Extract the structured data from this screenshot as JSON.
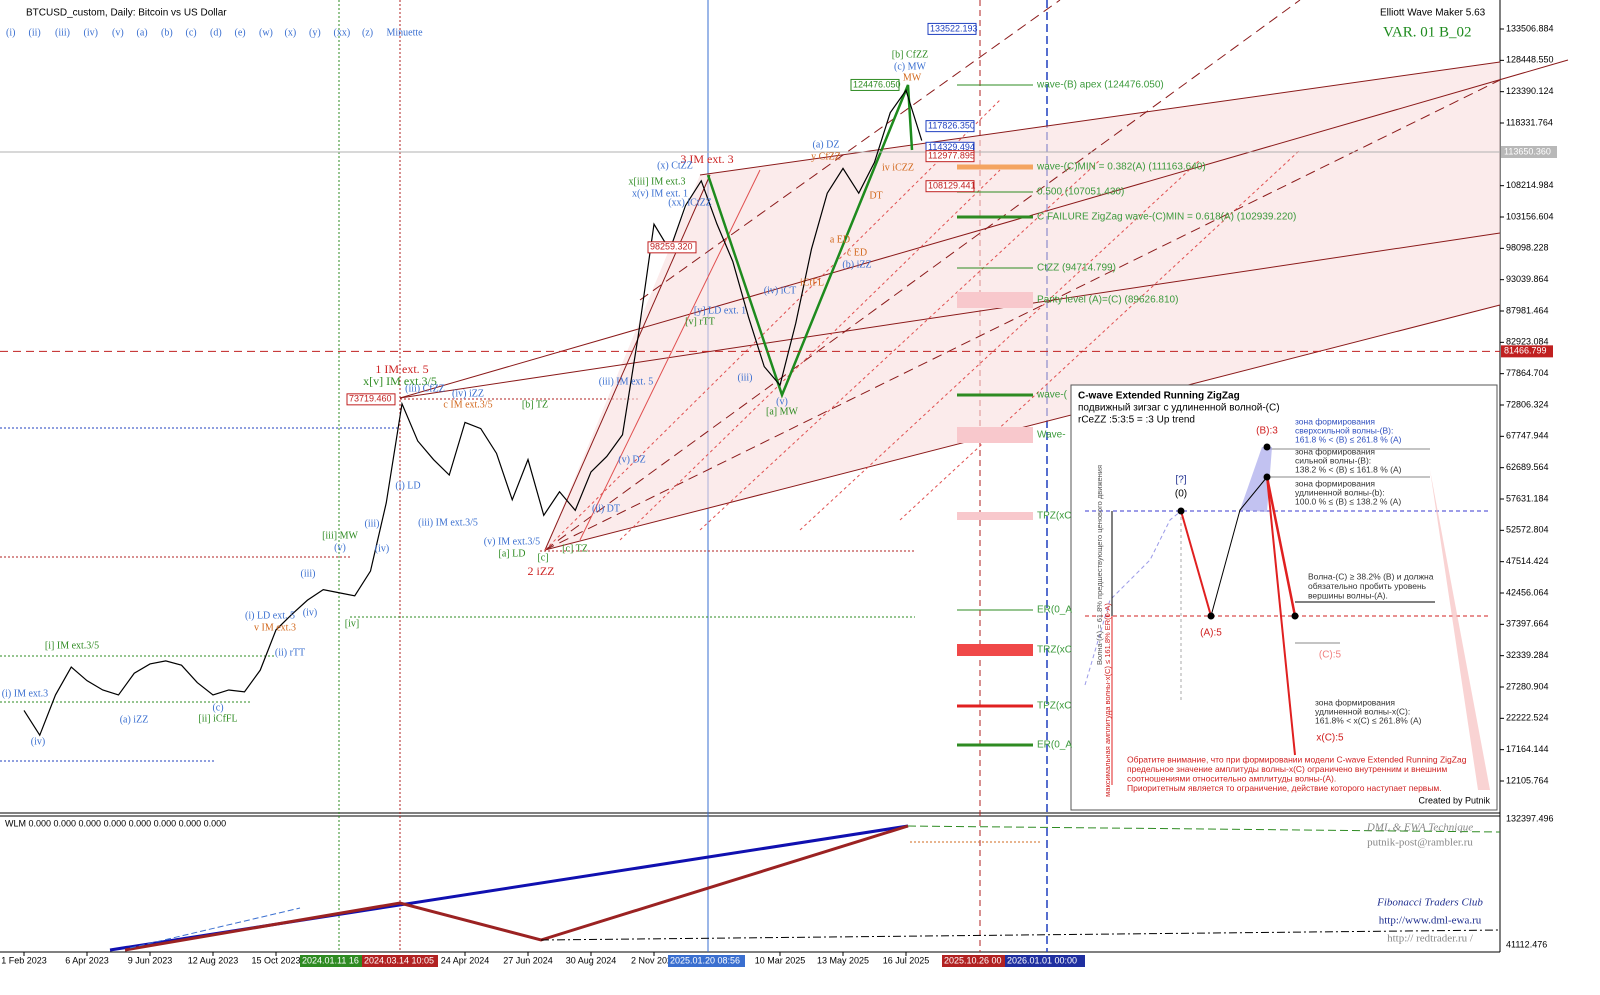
{
  "header": {
    "title": "BTCUSD_custom, Daily: Bitcoin vs US Dollar",
    "wave_buttons": [
      "(i)",
      "(ii)",
      "(iii)",
      "(iv)",
      "(v)",
      "(a)",
      "(b)",
      "(c)",
      "(d)",
      "(e)",
      "(w)",
      "(x)",
      "(y)",
      "(xx)",
      "(z)",
      "Minuette"
    ],
    "tool": "Elliott Wave Maker 5.63",
    "variant": "VAR. 01 B_02"
  },
  "chart_data": {
    "type": "line",
    "color": "#000000",
    "categories": [
      "1 Feb 2023",
      null,
      null,
      null,
      "6 Apr 2023",
      null,
      null,
      null,
      "9 Jun 2023",
      null,
      null,
      null,
      "12 Aug 2023",
      null,
      null,
      null,
      "15 Oct 2023",
      null,
      null,
      null,
      null,
      null,
      null,
      null,
      null,
      null,
      null,
      null,
      "24 Apr 2024",
      null,
      null,
      null,
      "27 Jun 2024",
      null,
      null,
      null,
      "30 Aug 2024",
      null,
      null,
      null,
      "2 Nov 2024",
      null,
      null,
      null,
      null,
      null,
      null,
      null,
      "10 Mar 2025",
      null,
      null,
      null,
      "13 May 2025",
      null,
      null,
      null,
      "16 Jul 2025",
      null
    ],
    "values": [
      23500,
      19500,
      26000,
      30500,
      28300,
      26800,
      26000,
      29500,
      31000,
      31500,
      30800,
      28000,
      26000,
      26800,
      26500,
      30000,
      36500,
      39000,
      41300,
      43000,
      42500,
      42000,
      46000,
      57000,
      73000,
      67000,
      64000,
      61500,
      70000,
      69000,
      65000,
      57500,
      64000,
      55000,
      58800,
      55800,
      62000,
      64500,
      68000,
      84000,
      102000,
      97800,
      105000,
      109000,
      102000,
      96000,
      87000,
      79000,
      76000,
      86000,
      98000,
      107000,
      111000,
      107000,
      112000,
      120000,
      123600,
      115500
    ],
    "ylim": [
      7100,
      138190
    ],
    "yticks": [
      133506.884,
      {
        "value": 128448.55,
        "label": "128448.550"
      },
      123390.124,
      118331.764,
      108214.984,
      103156.604,
      98098.228,
      93039.864,
      87981.464,
      82923.084,
      77864.704,
      72806.324,
      67747.944,
      62689.564,
      57631.184,
      52572.804,
      47514.424,
      42456.064,
      37397.664,
      32339.284,
      27280.904,
      22222.524,
      17164.144,
      12105.764
    ],
    "current_price": {
      "value": 113650.36,
      "label": "113650.360"
    },
    "level_price": 81466.799,
    "price_markers": [
      133522.193,
      {
        "value": 117826.35,
        "label": "117826.350"
      },
      114329.494,
      112977.895,
      108129.441,
      {
        "value": 124476.05,
        "label": "124476.050"
      },
      {
        "value": 98259.32,
        "label": "98259.320"
      },
      {
        "value": 73719.46,
        "label": "73719.460"
      }
    ]
  },
  "time_markers": [
    "2024.01.11 16",
    "2024.03.14 10:05",
    "2025.01.20 08:56",
    "2025.10.26 00",
    "2026.01.01 00:00"
  ],
  "fib_levels": [
    "wave-(B) apex (124476.050)",
    "wave-(C)MIN = 0.382(A) (111163.640)",
    "0.500 (107051.430)",
    "C FAILURE ZigZag wave-(C)MIN = 0.618(A) (102939.220)",
    "CtZZ (94714.799)",
    "Parity level (A)=(C) (89626.810)",
    "wave-(",
    "Wave-",
    "TPZ(xC",
    "ER(0_A",
    "TRZ(xC",
    "TPZ(xC",
    "ER(0_A"
  ],
  "annotations": [
    {
      "text": "1 IM ext. 5",
      "color": "#cc2222"
    },
    {
      "text": "x[v] IM ext.3/5",
      "color": "#2e8b22"
    },
    {
      "text": "2 iZZ",
      "color": "#cc2222"
    },
    {
      "text": "3 IM ext. 3",
      "color": "#cc2222"
    },
    {
      "text": "[a] MW",
      "color": "#2e8b22"
    },
    {
      "text": "[b] CfZZ",
      "color": "#2e8b22"
    },
    {
      "text": "(c) MW",
      "color": "#3a6fd0"
    },
    {
      "text": "MW",
      "color": "#d2691e"
    },
    {
      "text": "(a) DZ",
      "color": "#3a6fd0"
    },
    {
      "text": "y CfZZ",
      "color": "#d2691e"
    },
    {
      "text": "[iii] MW",
      "color": "#2e8b22"
    },
    {
      "text": "(i) LD",
      "color": "#3a6fd0"
    },
    {
      "text": "(iii) IM ext.3/5",
      "color": "#3a6fd0"
    },
    {
      "text": "(v) IM ext.3/5",
      "color": "#3a6fd0"
    },
    {
      "text": "[a] LD",
      "color": "#2e8b22"
    },
    {
      "text": "[b] TZ",
      "color": "#2e8b22"
    },
    {
      "text": "(iv) iZZ",
      "color": "#3a6fd0"
    },
    {
      "text": "(iii) CfZZ",
      "color": "#3a6fd0"
    },
    {
      "text": "c IM ext.3/5",
      "color": "#d2691e"
    },
    {
      "text": "(iii) IM ext. 5",
      "color": "#3a6fd0"
    },
    {
      "text": "(v) DZ",
      "color": "#3a6fd0"
    },
    {
      "text": "(ii) DT",
      "color": "#3a6fd0"
    },
    {
      "text": "[c] TZ",
      "color": "#2e8b22"
    },
    {
      "text": "(x) CtZZ",
      "color": "#3a6fd0"
    },
    {
      "text": "x[iii] IM ext.3",
      "color": "#2e8b22"
    },
    {
      "text": "x(v) IM ext. 1",
      "color": "#3a6fd0"
    },
    {
      "text": "(xx) iCtZZ",
      "color": "#3a6fd0"
    },
    {
      "text": "[y] LD ext. 1",
      "color": "#3a6fd0"
    },
    {
      "text": "[v] rTT",
      "color": "#2e8b22"
    },
    {
      "text": "(iv) iCT",
      "color": "#3a6fd0"
    },
    {
      "text": "iCtFL",
      "color": "#d2691e"
    },
    {
      "text": "(v)",
      "color": "#3a6fd0"
    },
    {
      "text": "(iii)",
      "color": "#3a6fd0"
    },
    {
      "text": "a ED",
      "color": "#d2691e"
    },
    {
      "text": "c ED",
      "color": "#d2691e"
    },
    {
      "text": "(b) iZZ",
      "color": "#3a6fd0"
    },
    {
      "text": "DT",
      "color": "#d2691e"
    },
    {
      "text": "iv iCZZ",
      "color": "#d2691e"
    },
    {
      "text": "[i] IM ext.3/5",
      "color": "#2e8b22"
    },
    {
      "text": "(a) iZZ",
      "color": "#3a6fd0"
    },
    {
      "text": "[ii] iCfFL",
      "color": "#2e8b22"
    },
    {
      "text": "(iv)",
      "color": "#3a6fd0"
    },
    {
      "text": "(c)",
      "color": "#3a6fd0"
    },
    {
      "text": "(i) IM ext.3",
      "color": "#3a6fd0"
    },
    {
      "text": "(i) LD ext. 5",
      "color": "#3a6fd0"
    },
    {
      "text": "v IM ext.3",
      "color": "#d2691e"
    },
    {
      "text": "(ii) rTT",
      "color": "#3a6fd0"
    },
    {
      "text": "[iv]",
      "color": "#2e8b22"
    },
    {
      "text": "(iii)",
      "color": "#3a6fd0"
    },
    {
      "text": "(iv)",
      "color": "#3a6fd0"
    },
    {
      "text": "(iii)",
      "color": "#3a6fd0"
    },
    {
      "text": "(iv)",
      "color": "#3a6fd0"
    },
    {
      "text": "(v)",
      "color": "#3a6fd0"
    },
    {
      "text": "[c]",
      "color": "#2e8b22"
    }
  ],
  "info_panel": {
    "title": "C-wave Extended Running ZigZag",
    "subtitle": "подвижный зигзаг с удлиненной волной-(C)",
    "formula": "rCeZZ :5:3:5 = :3 Up trend",
    "points": [
      "(B):3",
      "[?]",
      "(0)",
      "(A):5",
      "(C):5",
      "x(C):5"
    ],
    "zone_lines": [
      "зона формирования",
      "сверхсильной волны-(B):",
      "161.8 % < (B) ≤ 261.8 % (A)",
      "зона формирования",
      "сильной волны-(B):",
      "138.2 % < (B) ≤ 161.8 % (A)",
      "зона формирования",
      "удлиненной волны-(b):",
      "100.0 % ≤ (B) ≤ 138.2 % (A)"
    ],
    "rule_lines": [
      "Волна-(C) ≥ 38.2% (B) и должна",
      "обязательно пробить уровень",
      "вершины волны-(A)."
    ],
    "xc_lines": [
      "зона формирования",
      "удлиненной волны-x(C):",
      "161.8% < x(C) ≤ 261.8% (A)"
    ],
    "side_notes": [
      "Волна-(A) = 61.8% предшествующего ценового движения",
      "максимальная амплитуда волны-x(C) ≤ 161.8% ER(0-A)"
    ],
    "note_lines": [
      "Обратите внимание, что при формировании модели C-wave Extended Running ZigZag",
      "предельное значение амплитуды волны-x(C) ограничено внутренним и внешним",
      "соотношениями относительно амплитуды волны-(A).",
      "Приоритетным является то ограничение, действие которого наступает первым."
    ],
    "author": "Created by Putnik"
  },
  "indicator": {
    "title": "WLM 0.000 0.000 0.000 0.000 0.000 0.000 0.000 0.000",
    "yticks": [
      132397.496,
      41112.476
    ],
    "credits": [
      "DML & EWA Technique",
      "putnik-post@rambler.ru",
      "Fibonacci Traders Club",
      "http://www.dml-ewa.ru",
      "http:// redtrader.ru /"
    ]
  }
}
